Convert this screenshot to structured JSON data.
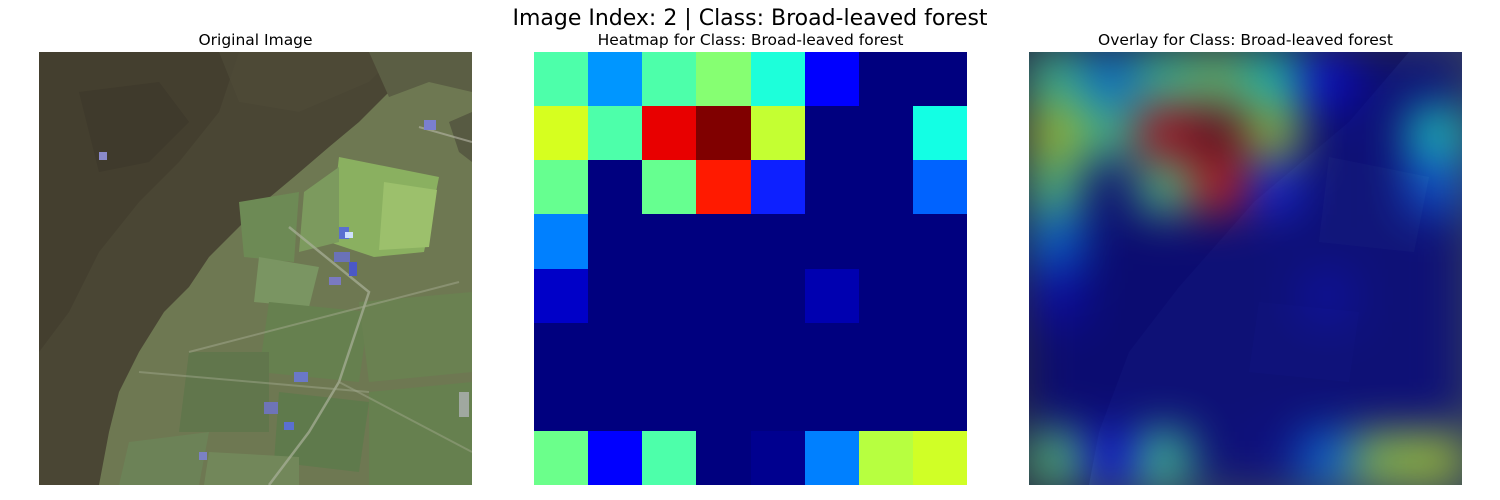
{
  "figure": {
    "suptitle": "Image Index: 2 | Class: Broad-leaved forest",
    "panels": [
      {
        "title": "Original Image"
      },
      {
        "title": "Heatmap for Class: Broad-leaved forest"
      },
      {
        "title": "Overlay for Class: Broad-leaved forest"
      }
    ]
  },
  "heatmap": {
    "colormap": "jet",
    "rows": 8,
    "cols": 8,
    "colors": [
      [
        "#4dffaa",
        "#0096ff",
        "#4dffaa",
        "#86ff72",
        "#1dffda",
        "#0000ff",
        "#00007f",
        "#00007f"
      ],
      [
        "#d6ff1f",
        "#4dffaa",
        "#e80000",
        "#800000",
        "#c4ff32",
        "#00007f",
        "#00007f",
        "#13ffe4"
      ],
      [
        "#66ff90",
        "#00007f",
        "#66ff90",
        "#ff1a00",
        "#0d20ff",
        "#00007f",
        "#00007f",
        "#0063ff"
      ],
      [
        "#0080ff",
        "#00007f",
        "#00007f",
        "#00007f",
        "#00007f",
        "#00007f",
        "#00007f",
        "#00007f"
      ],
      [
        "#0000c8",
        "#00007f",
        "#00007f",
        "#00007f",
        "#00007f",
        "#0000b0",
        "#00007f",
        "#00007f"
      ],
      [
        "#00007f",
        "#00007f",
        "#00007f",
        "#00007f",
        "#00007f",
        "#00007f",
        "#00007f",
        "#00007f"
      ],
      [
        "#00007f",
        "#00007f",
        "#00007f",
        "#00007f",
        "#00007f",
        "#00007f",
        "#00007f",
        "#00007f"
      ],
      [
        "#6bff8b",
        "#0000ff",
        "#4dffaa",
        "#00007f",
        "#00008f",
        "#0080ff",
        "#b7ff40",
        "#d0ff26"
      ]
    ]
  }
}
